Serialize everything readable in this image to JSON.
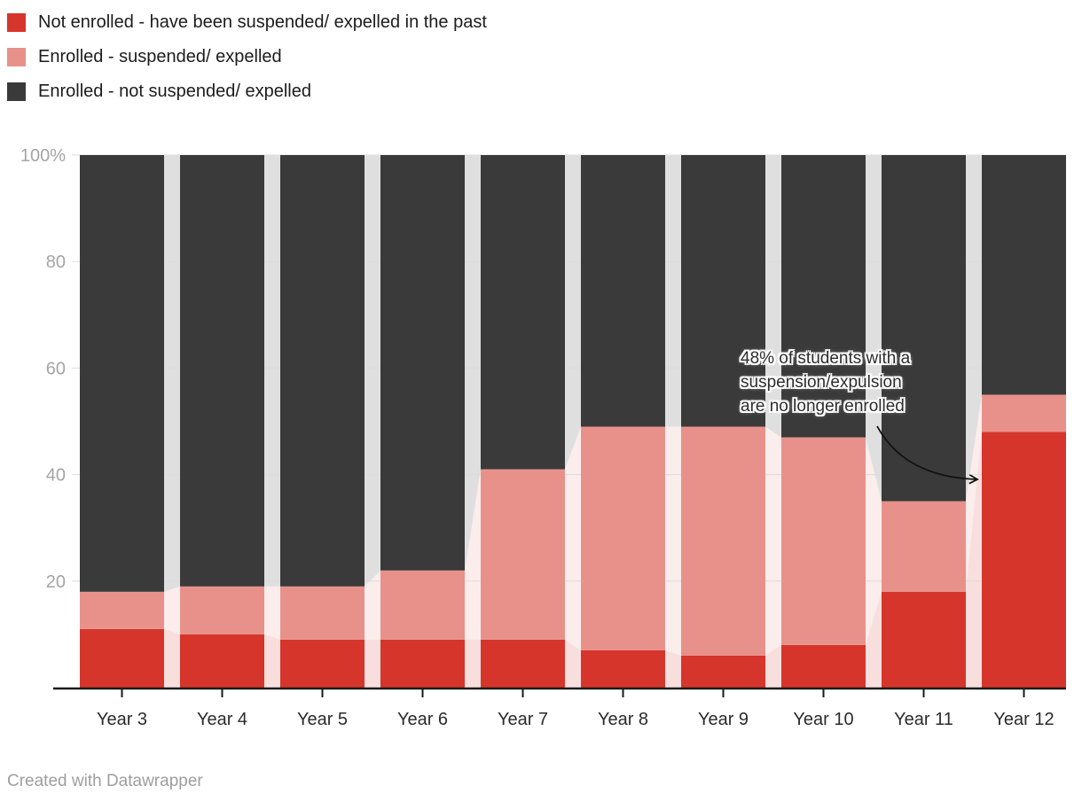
{
  "legend": {
    "items": [
      {
        "label": "Not enrolled - have been suspended/ expelled in the past",
        "color": "#d6352b"
      },
      {
        "label": "Enrolled - suspended/ expelled",
        "color": "#e8918b"
      },
      {
        "label": "Enrolled - not suspended/ expelled",
        "color": "#3a3a3a"
      }
    ]
  },
  "chart_data": {
    "type": "bar",
    "stacked": true,
    "percent_scale": true,
    "title": "",
    "xlabel": "",
    "ylabel": "",
    "categories": [
      "Year 3",
      "Year 4",
      "Year 5",
      "Year 6",
      "Year 7",
      "Year 8",
      "Year 9",
      "Year 10",
      "Year 11",
      "Year 12"
    ],
    "series": [
      {
        "name": "Not enrolled - have been suspended/ expelled in the past",
        "color": "#d6352b",
        "values": [
          11,
          10,
          9,
          9,
          9,
          7,
          6,
          8,
          18,
          48
        ]
      },
      {
        "name": "Enrolled - suspended/ expelled",
        "color": "#e8918b",
        "values": [
          7,
          9,
          10,
          13,
          32,
          42,
          43,
          39,
          17,
          7
        ]
      },
      {
        "name": "Enrolled - not suspended/ expelled",
        "color": "#3a3a3a",
        "values": [
          82,
          81,
          81,
          78,
          59,
          51,
          51,
          53,
          65,
          45
        ]
      }
    ],
    "ylim": [
      0,
      100
    ],
    "yticks": [
      {
        "value": 100,
        "label": "100%"
      },
      {
        "value": 80,
        "label": "80"
      },
      {
        "value": 60,
        "label": "60"
      },
      {
        "value": 40,
        "label": "40"
      },
      {
        "value": 20,
        "label": "20"
      }
    ],
    "grid": "horizontal",
    "legend_position": "top-left",
    "connector_opacity": 0.16
  },
  "annotation": {
    "lines": [
      "48% of students with a",
      "suspension/expulsion",
      "are no longer enrolled"
    ],
    "arrow": {
      "from": [
        989,
        481
      ],
      "control": [
        1020,
        538
      ],
      "to": [
        1101,
        541
      ]
    }
  },
  "axis_colors": {
    "ytick_label": "#a5a5a5",
    "xtick_label": "#2b2b2b",
    "gridline": "#dcdcdc",
    "baseline": "#1a1a1a"
  },
  "footer": {
    "credit": "Created with Datawrapper"
  }
}
